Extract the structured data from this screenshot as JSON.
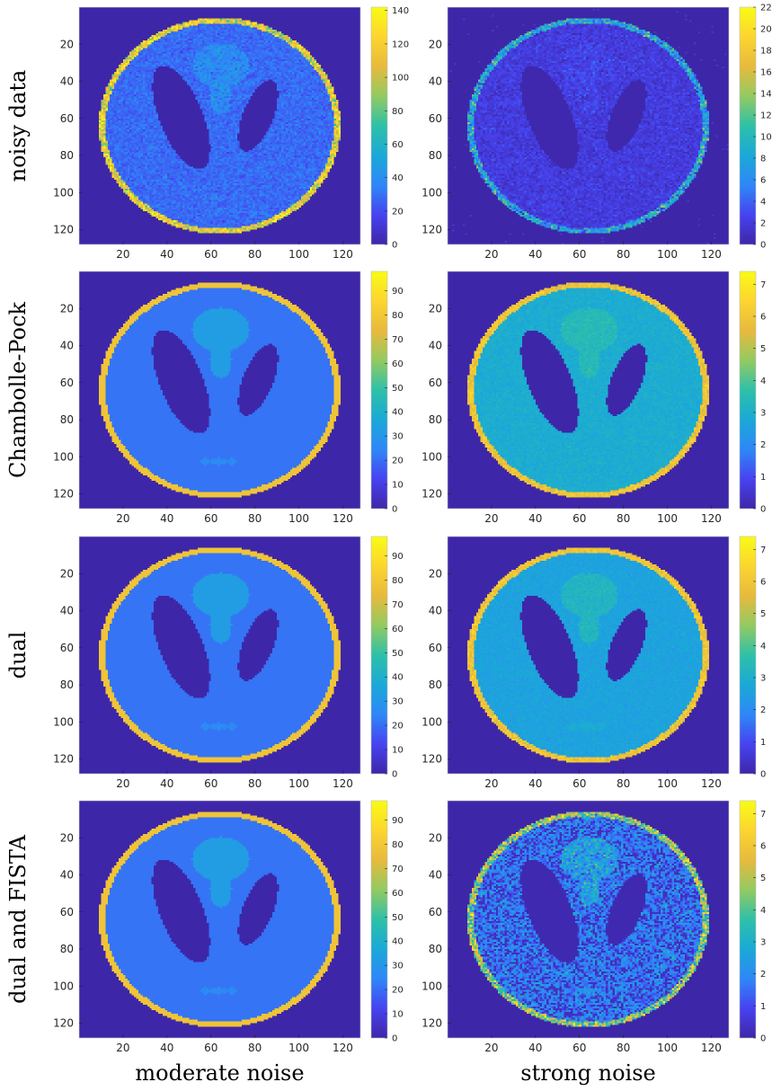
{
  "rows": [
    "noisy data",
    "Chambolle-Pock",
    "dual",
    "dual and FISTA"
  ],
  "columns": [
    "moderate noise",
    "strong noise"
  ],
  "colors": {
    "background": "#3d26a8",
    "colormap": [
      "#3e26a8",
      "#4743f0",
      "#2e87f7",
      "#1aa9d7",
      "#2ec0a8",
      "#93ca61",
      "#e7ba3c",
      "#fcd52f",
      "#f9fb15"
    ]
  },
  "chart_data": [
    {
      "type": "heatmap",
      "row": "noisy data",
      "column": "moderate noise",
      "xticks": [
        20,
        40,
        60,
        80,
        100,
        120
      ],
      "yticks": [
        20,
        40,
        60,
        80,
        100,
        120
      ],
      "xlim": [
        0,
        128
      ],
      "ylim": [
        0,
        128
      ],
      "colorbar_ticks": [
        0,
        20,
        40,
        60,
        80,
        100,
        120,
        140
      ],
      "clim": [
        0,
        142
      ],
      "levels": {
        "rim": 110,
        "interior": 28,
        "upper_blob": 38,
        "small_features": 32,
        "ellipses": 0,
        "background": 0
      },
      "noise": "moderate"
    },
    {
      "type": "heatmap",
      "row": "noisy data",
      "column": "strong noise",
      "xticks": [
        20,
        40,
        60,
        80,
        100,
        120
      ],
      "yticks": [
        20,
        40,
        60,
        80,
        100,
        120
      ],
      "xlim": [
        0,
        128
      ],
      "ylim": [
        0,
        128
      ],
      "colorbar_ticks": [
        0,
        2,
        4,
        6,
        8,
        10,
        12,
        14,
        16,
        18,
        20,
        22
      ],
      "clim": [
        0,
        22
      ],
      "levels": {
        "rim": 8,
        "interior": 2,
        "upper_blob": 2.5,
        "small_features": 2,
        "ellipses": 0.2,
        "background": 0
      },
      "noise": "strong"
    },
    {
      "type": "heatmap",
      "row": "Chambolle-Pock",
      "column": "moderate noise",
      "xticks": [
        20,
        40,
        60,
        80,
        100,
        120
      ],
      "yticks": [
        20,
        40,
        60,
        80,
        100,
        120
      ],
      "xlim": [
        0,
        128
      ],
      "ylim": [
        0,
        128
      ],
      "colorbar_ticks": [
        0,
        10,
        20,
        30,
        40,
        50,
        60,
        70,
        80,
        90
      ],
      "clim": [
        0,
        98
      ],
      "levels": {
        "rim": 78,
        "interior": 21,
        "upper_blob": 32,
        "small_features": 26,
        "ellipses": 0,
        "background": 0
      },
      "noise": "none"
    },
    {
      "type": "heatmap",
      "row": "Chambolle-Pock",
      "column": "strong noise",
      "xticks": [
        20,
        40,
        60,
        80,
        100,
        120
      ],
      "yticks": [
        20,
        40,
        60,
        80,
        100,
        120
      ],
      "xlim": [
        0,
        128
      ],
      "ylim": [
        0,
        128
      ],
      "colorbar_ticks": [
        0,
        1,
        2,
        3,
        4,
        5,
        6,
        7
      ],
      "clim": [
        0,
        7.4
      ],
      "levels": {
        "rim": 5.9,
        "interior": 2.9,
        "upper_blob": 3.4,
        "small_features": 3.0,
        "ellipses": 0,
        "background": 0
      },
      "noise": "mild"
    },
    {
      "type": "heatmap",
      "row": "dual",
      "column": "moderate noise",
      "xticks": [
        20,
        40,
        60,
        80,
        100,
        120
      ],
      "yticks": [
        20,
        40,
        60,
        80,
        100,
        120
      ],
      "xlim": [
        0,
        128
      ],
      "ylim": [
        0,
        128
      ],
      "colorbar_ticks": [
        0,
        10,
        20,
        30,
        40,
        50,
        60,
        70,
        80,
        90
      ],
      "clim": [
        0,
        98
      ],
      "levels": {
        "rim": 78,
        "interior": 21,
        "upper_blob": 32,
        "small_features": 26,
        "ellipses": 0,
        "background": 0
      },
      "noise": "none"
    },
    {
      "type": "heatmap",
      "row": "dual",
      "column": "strong noise",
      "xticks": [
        20,
        40,
        60,
        80,
        100,
        120
      ],
      "yticks": [
        20,
        40,
        60,
        80,
        100,
        120
      ],
      "xlim": [
        0,
        128
      ],
      "ylim": [
        0,
        128
      ],
      "colorbar_ticks": [
        0,
        1,
        2,
        3,
        4,
        5,
        6,
        7
      ],
      "clim": [
        0,
        7.4
      ],
      "levels": {
        "rim": 5.9,
        "interior": 2.6,
        "upper_blob": 3.2,
        "small_features": 2.9,
        "ellipses": 0,
        "background": 0
      },
      "noise": "mild"
    },
    {
      "type": "heatmap",
      "row": "dual and FISTA",
      "column": "moderate noise",
      "xticks": [
        20,
        40,
        60,
        80,
        100,
        120
      ],
      "yticks": [
        20,
        40,
        60,
        80,
        100,
        120
      ],
      "xlim": [
        0,
        128
      ],
      "ylim": [
        0,
        128
      ],
      "colorbar_ticks": [
        0,
        10,
        20,
        30,
        40,
        50,
        60,
        70,
        80,
        90
      ],
      "clim": [
        0,
        98
      ],
      "levels": {
        "rim": 78,
        "interior": 21,
        "upper_blob": 32,
        "small_features": 26,
        "ellipses": 0,
        "background": 0
      },
      "noise": "none"
    },
    {
      "type": "heatmap",
      "row": "dual and FISTA",
      "column": "strong noise",
      "xticks": [
        20,
        40,
        60,
        80,
        100,
        120
      ],
      "yticks": [
        20,
        40,
        60,
        80,
        100,
        120
      ],
      "xlim": [
        0,
        128
      ],
      "ylim": [
        0,
        128
      ],
      "colorbar_ticks": [
        0,
        1,
        2,
        3,
        4,
        5,
        6,
        7
      ],
      "clim": [
        0,
        7.4
      ],
      "levels": {
        "rim": 4.5,
        "interior": 1.8,
        "upper_blob": 2.5,
        "small_features": 2.0,
        "ellipses": 0.1,
        "background": 0
      },
      "noise": "speckled"
    }
  ]
}
